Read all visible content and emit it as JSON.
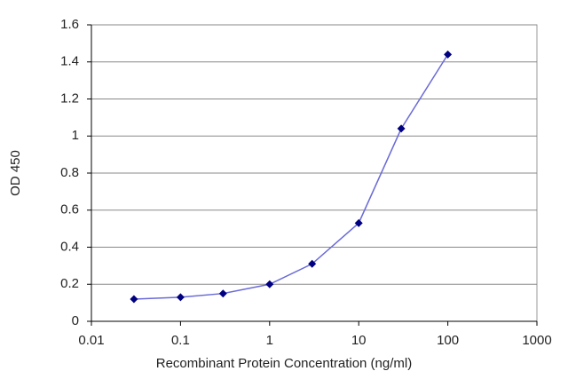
{
  "chart_data": {
    "type": "line",
    "x_label": "Recombinant Protein Concentration (ng/ml)",
    "y_label": "OD 450",
    "x": [
      0.03,
      0.1,
      0.3,
      1,
      3,
      10,
      30,
      100
    ],
    "series": [
      {
        "name": "OD 450",
        "color": "#6a6ad8",
        "marker_color": "#000080",
        "values": [
          0.12,
          0.13,
          0.15,
          0.2,
          0.31,
          0.53,
          1.04,
          1.44
        ]
      }
    ],
    "xscale": "log",
    "xlim": [
      0.01,
      1000
    ],
    "xticks": [
      0.01,
      0.1,
      1,
      10,
      100,
      1000
    ],
    "ylim": [
      0,
      1.6
    ],
    "yticks": [
      0,
      0.2,
      0.4,
      0.6,
      0.8,
      1,
      1.2,
      1.4,
      1.6
    ],
    "grid": true
  }
}
